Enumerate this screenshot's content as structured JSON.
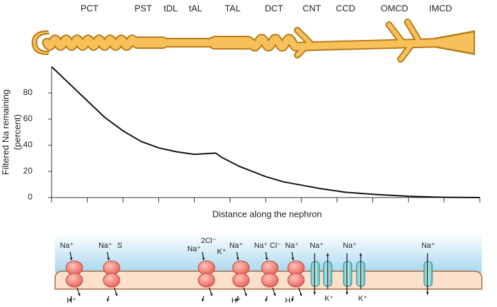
{
  "segments": [
    "PCT",
    "PST",
    "tDL",
    "tAL",
    "TAL",
    "DCT",
    "CNT",
    "CCD",
    "OMCD",
    "IMCD"
  ],
  "chart_data": {
    "type": "line",
    "ylabel": [
      "Filtered Na remaining",
      "(percent)"
    ],
    "xlabel": "Distance along the nephron",
    "x": [
      0,
      0.5,
      1,
      1.5,
      2,
      2.5,
      3,
      3.5,
      4,
      4.6,
      4.75,
      5.25,
      6,
      6.5,
      7.5,
      8.25,
      9,
      10,
      11,
      12
    ],
    "series": [
      {
        "name": "Filtered Na remaining",
        "color": "#111111",
        "values": [
          100,
          87,
          74,
          61,
          51,
          43,
          38,
          35,
          33,
          34,
          31,
          24,
          16,
          12,
          7,
          4,
          2.5,
          1,
          0.2,
          0
        ]
      }
    ],
    "xlim": [
      0,
      12
    ],
    "xticks": [
      0,
      1,
      2,
      3,
      4,
      5,
      6,
      7,
      8,
      9,
      10,
      11,
      12
    ],
    "ylim": [
      0,
      100
    ],
    "yticks": [
      0,
      20,
      40,
      60,
      80
    ]
  },
  "transport_labels": [
    "Na⁺",
    "H⁺",
    "Na⁺",
    "S",
    "Na⁺",
    "2Cl⁻",
    "K⁺",
    "Na⁺",
    "H⁺",
    "Na⁺",
    "Cl⁻",
    "Na⁺",
    "H⁺",
    "Na⁺",
    "K⁺",
    "Na⁺",
    "K⁺",
    "Na⁺"
  ]
}
